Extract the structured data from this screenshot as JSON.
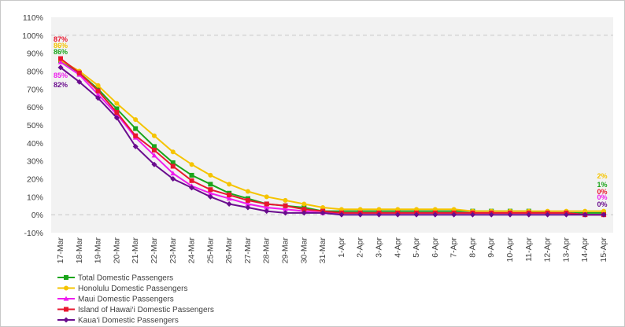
{
  "chart_data": {
    "type": "line",
    "x": [
      "17-Mar",
      "18-Mar",
      "19-Mar",
      "20-Mar",
      "21-Mar",
      "22-Mar",
      "23-Mar",
      "24-Mar",
      "25-Mar",
      "26-Mar",
      "27-Mar",
      "28-Mar",
      "29-Mar",
      "30-Mar",
      "31-Mar",
      "1-Apr",
      "2-Apr",
      "3-Apr",
      "4-Apr",
      "5-Apr",
      "6-Apr",
      "7-Apr",
      "8-Apr",
      "9-Apr",
      "10-Apr",
      "11-Apr",
      "12-Apr",
      "13-Apr",
      "14-Apr",
      "15-Apr"
    ],
    "yticks": [
      "110%",
      "100%",
      "90%",
      "80%",
      "70%",
      "60%",
      "50%",
      "40%",
      "30%",
      "20%",
      "10%",
      "0%",
      "-10%"
    ],
    "ylim": [
      -10,
      110
    ],
    "grid": "none",
    "reference_lines": [
      100,
      0
    ],
    "legend_position": "bottom-left",
    "series": [
      {
        "name": "Total Domestic Passengers",
        "color": "#1aa51a",
        "values": [
          86,
          79,
          70,
          59,
          48,
          38,
          29,
          22,
          17,
          12,
          9,
          6,
          5,
          4,
          2,
          2,
          2,
          2,
          2,
          2,
          2,
          2,
          2,
          2,
          2,
          2,
          1,
          1,
          1,
          1
        ]
      },
      {
        "name": "Honolulu Domestic Passengers",
        "color": "#f5c400",
        "values": [
          86,
          80,
          72,
          62,
          53,
          44,
          35,
          28,
          22,
          17,
          13,
          10,
          8,
          6,
          4,
          3,
          3,
          3,
          3,
          3,
          3,
          3,
          2,
          2,
          2,
          2,
          2,
          2,
          2,
          2
        ]
      },
      {
        "name": "Maui Domestic Passengers",
        "color": "#ee1cee",
        "values": [
          85,
          78,
          67,
          56,
          43,
          33,
          23,
          16,
          12,
          9,
          6,
          4,
          3,
          2,
          1,
          1,
          1,
          1,
          1,
          1,
          1,
          1,
          1,
          1,
          1,
          1,
          1,
          1,
          0,
          0
        ]
      },
      {
        "name": "Island of Hawai‘i Domestic Passengers",
        "color": "#e8162e",
        "values": [
          87,
          79,
          69,
          57,
          44,
          36,
          27,
          19,
          14,
          11,
          8,
          6,
          5,
          3,
          2,
          1,
          1,
          1,
          1,
          1,
          1,
          1,
          1,
          1,
          1,
          1,
          1,
          1,
          0,
          0
        ]
      },
      {
        "name": "Kaua‘i Domestic Passengers",
        "color": "#6a0d8e",
        "values": [
          82,
          74,
          65,
          54,
          38,
          28,
          20,
          15,
          10,
          6,
          4,
          2,
          1,
          1,
          1,
          0,
          0,
          0,
          0,
          0,
          0,
          0,
          0,
          0,
          0,
          0,
          0,
          0,
          0,
          0
        ]
      }
    ],
    "start_labels": [
      {
        "text": "87%",
        "color": "#e8162e"
      },
      {
        "text": "86%",
        "color": "#f5c400"
      },
      {
        "text": "86%",
        "color": "#1aa51a"
      },
      {
        "text": "85%",
        "color": "#ee1cee"
      },
      {
        "text": "82%",
        "color": "#6a0d8e"
      }
    ],
    "end_labels": [
      {
        "text": "2%",
        "color": "#f5c400"
      },
      {
        "text": "1%",
        "color": "#1aa51a"
      },
      {
        "text": "0%",
        "color": "#e8162e"
      },
      {
        "text": "0%",
        "color": "#ee1cee"
      },
      {
        "text": "0%",
        "color": "#6a0d8e"
      }
    ]
  }
}
